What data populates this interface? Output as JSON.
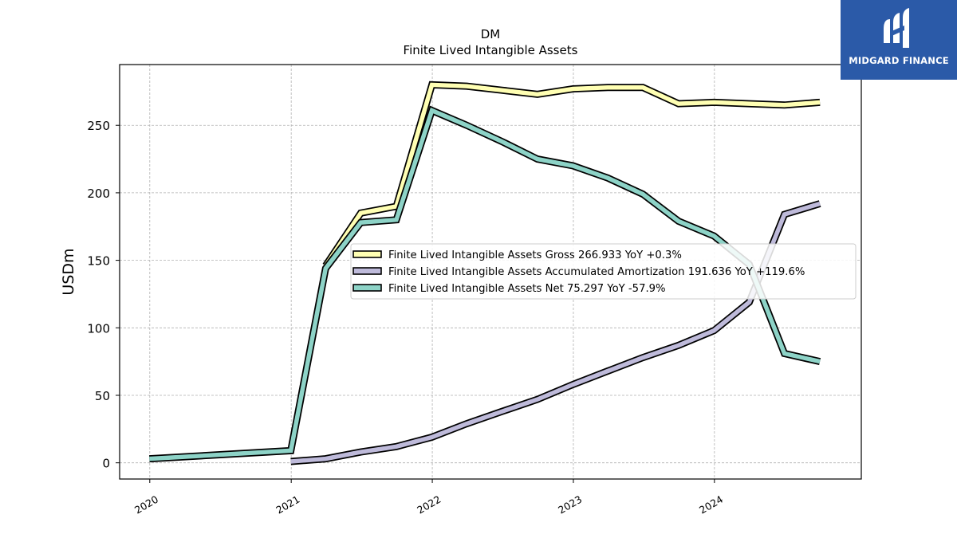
{
  "chart_data": {
    "type": "line",
    "title": "DM",
    "subtitle": "Finite Lived Intangible Assets",
    "xlabel": "",
    "ylabel": "USDm",
    "x_ticks": [
      "2020",
      "2021",
      "2022",
      "2023",
      "2024"
    ],
    "y_ticks": [
      "0",
      "50",
      "100",
      "150",
      "200",
      "250"
    ],
    "xlim": [
      "2019-10-15",
      "2025-01-15"
    ],
    "ylim": [
      -12,
      295
    ],
    "grid": true,
    "legend_position": "center-right",
    "series": [
      {
        "name": "Finite Lived Intangible Assets Gross  266.933 YoY +0.3%",
        "color": "#ffffb3",
        "points": [
          [
            "2021-03-31",
            146
          ],
          [
            "2021-06-30",
            185
          ],
          [
            "2021-09-30",
            190
          ],
          [
            "2021-12-31",
            280
          ],
          [
            "2022-03-31",
            279
          ],
          [
            "2022-06-30",
            276
          ],
          [
            "2022-09-30",
            273
          ],
          [
            "2022-12-31",
            277
          ],
          [
            "2023-03-31",
            278
          ],
          [
            "2023-06-30",
            278
          ],
          [
            "2023-09-30",
            266
          ],
          [
            "2023-12-31",
            267
          ],
          [
            "2024-03-31",
            266
          ],
          [
            "2024-06-30",
            265
          ],
          [
            "2024-09-30",
            267
          ]
        ]
      },
      {
        "name": "Finite Lived Intangible Assets Accumulated Amortization  191.636 YoY +119.6%",
        "color": "#bebada",
        "points": [
          [
            "2020-12-31",
            1
          ],
          [
            "2021-03-31",
            3
          ],
          [
            "2021-06-30",
            8
          ],
          [
            "2021-09-30",
            12
          ],
          [
            "2021-12-31",
            19
          ],
          [
            "2022-03-31",
            29
          ],
          [
            "2022-06-30",
            38
          ],
          [
            "2022-09-30",
            47
          ],
          [
            "2022-12-31",
            58
          ],
          [
            "2023-03-31",
            68
          ],
          [
            "2023-06-30",
            78
          ],
          [
            "2023-09-30",
            87
          ],
          [
            "2023-12-31",
            98
          ],
          [
            "2024-03-31",
            119
          ],
          [
            "2024-06-30",
            184
          ],
          [
            "2024-09-30",
            192
          ]
        ]
      },
      {
        "name": "Finite Lived Intangible Assets Net  75.297 YoY -57.9%",
        "color": "#8dd3c7",
        "points": [
          [
            "2019-12-31",
            3
          ],
          [
            "2020-12-31",
            9
          ],
          [
            "2021-03-31",
            144
          ],
          [
            "2021-06-30",
            178
          ],
          [
            "2021-09-30",
            180
          ],
          [
            "2021-12-31",
            261
          ],
          [
            "2022-03-31",
            250
          ],
          [
            "2022-06-30",
            238
          ],
          [
            "2022-09-30",
            225
          ],
          [
            "2022-12-31",
            220
          ],
          [
            "2023-03-31",
            211
          ],
          [
            "2023-06-30",
            199
          ],
          [
            "2023-09-30",
            179
          ],
          [
            "2023-12-31",
            168
          ],
          [
            "2024-03-31",
            147
          ],
          [
            "2024-06-30",
            81
          ],
          [
            "2024-09-30",
            75
          ]
        ]
      }
    ]
  },
  "logo": {
    "text": "MIDGARD FINANCE",
    "icon": "midgard-logo-icon",
    "background": "#2b5aa8"
  }
}
